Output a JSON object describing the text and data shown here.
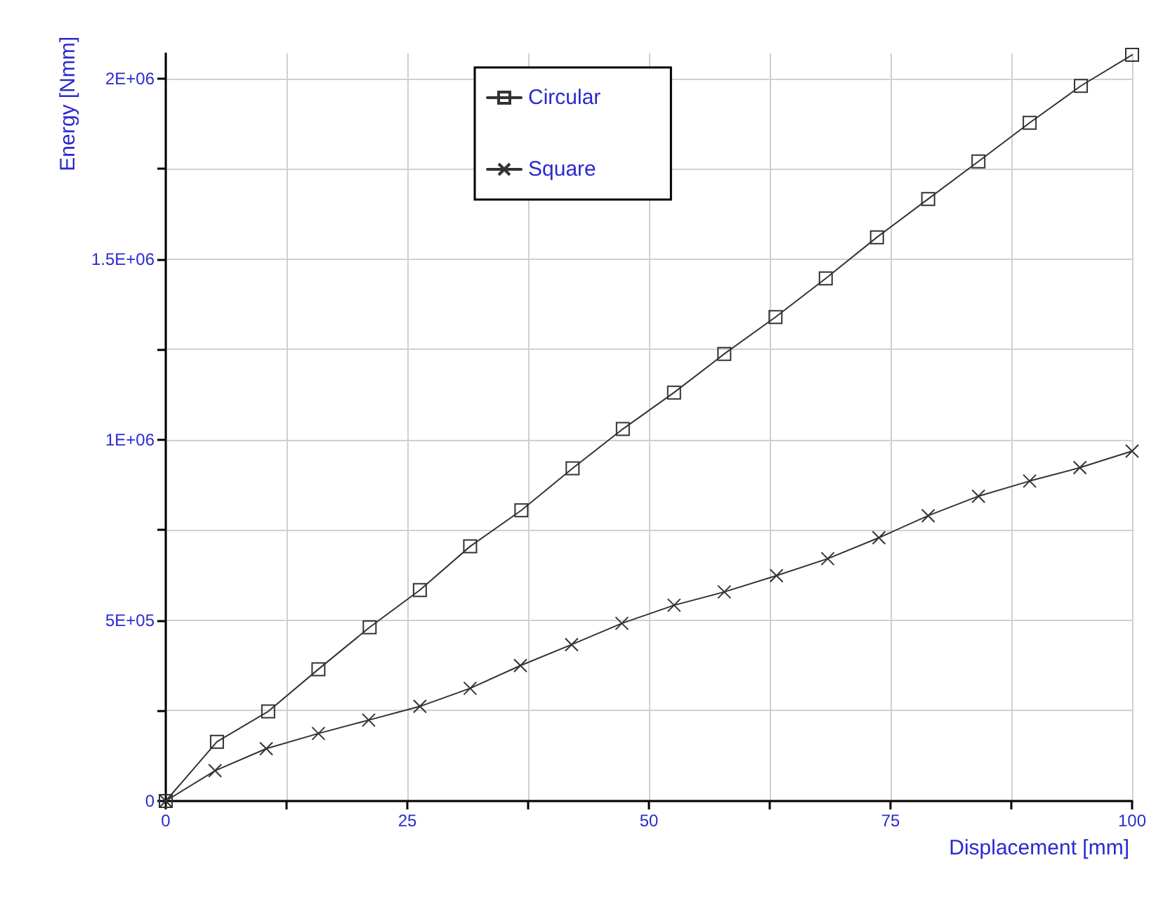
{
  "chart_data": {
    "type": "line",
    "xlabel": "Displacement [mm]",
    "ylabel": "Energy [Nmm]",
    "xlim": [
      0,
      100
    ],
    "xticks": [
      0,
      {
        "value": 12.5,
        "label": null
      },
      25,
      {
        "value": 37.5,
        "label": null
      },
      50,
      {
        "value": 62.5,
        "label": null
      },
      75,
      {
        "value": 87.5,
        "label": null
      },
      100
    ],
    "ylim": [
      0,
      2070000
    ],
    "yticks": [
      0,
      {
        "value": 250000,
        "label": null
      },
      {
        "value": 500000,
        "label": "5E+05"
      },
      {
        "value": 750000,
        "label": null
      },
      {
        "value": 1000000,
        "label": "1E+06"
      },
      {
        "value": 1250000,
        "label": null
      },
      {
        "value": 1500000,
        "label": "1.5E+06"
      },
      {
        "value": 1750000,
        "label": null
      },
      {
        "value": 2000000,
        "label": "2E+06"
      }
    ],
    "grid": true,
    "legend": "top",
    "line_style": "solid",
    "series": [
      {
        "name": "Circular",
        "color": "#333333",
        "marker": "square",
        "x": [
          0,
          5.3,
          10.6,
          15.8,
          21.1,
          26.3,
          31.5,
          36.8,
          42.1,
          47.3,
          52.6,
          57.8,
          63.1,
          68.3,
          73.6,
          78.9,
          84.1,
          89.4,
          94.7,
          100
        ],
        "values": [
          0,
          164000,
          248000,
          365000,
          481000,
          584000,
          705000,
          805000,
          921000,
          1030000,
          1131000,
          1238000,
          1340000,
          1447000,
          1561000,
          1667000,
          1771000,
          1878000,
          1980000,
          2066000
        ]
      },
      {
        "name": "Square",
        "color": "#333333",
        "marker": "cross",
        "x": [
          0,
          5.1,
          10.4,
          15.8,
          21,
          26.3,
          31.5,
          36.7,
          42,
          47.2,
          52.6,
          57.8,
          63.2,
          68.5,
          73.8,
          78.9,
          84.1,
          89.4,
          94.6,
          100
        ],
        "values": [
          0,
          84000,
          145000,
          187000,
          224000,
          262000,
          312000,
          375000,
          433000,
          492000,
          542000,
          579000,
          624000,
          671000,
          729000,
          790000,
          844000,
          886000,
          923000,
          969000
        ]
      }
    ]
  }
}
